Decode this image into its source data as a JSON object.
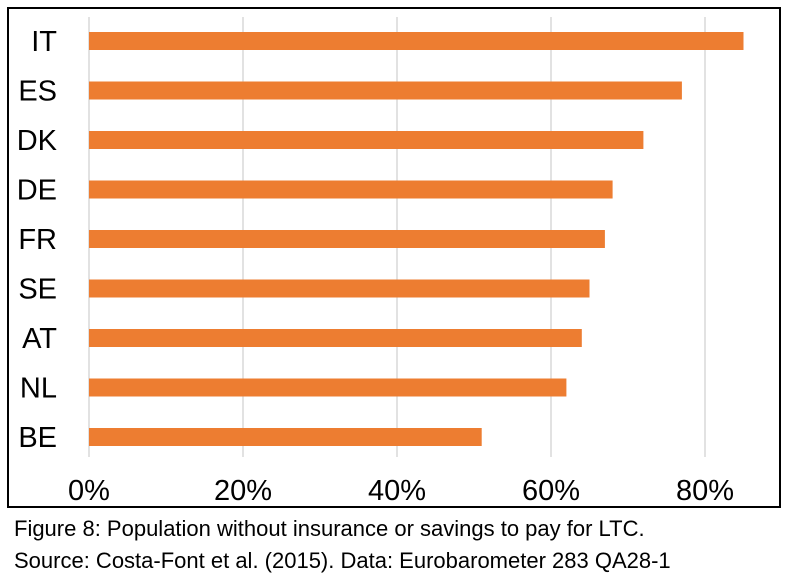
{
  "chart_data": {
    "type": "bar",
    "orientation": "horizontal",
    "categories": [
      "IT",
      "ES",
      "DK",
      "DE",
      "FR",
      "SE",
      "AT",
      "NL",
      "BE"
    ],
    "values": [
      85,
      77,
      72,
      68,
      67,
      65,
      64,
      62,
      51
    ],
    "x_ticks": [
      "0%",
      "20%",
      "40%",
      "60%",
      "80%"
    ],
    "x_tick_values": [
      0,
      20,
      40,
      60,
      80
    ],
    "xlim": [
      0,
      90
    ],
    "grid": "vertical",
    "legend": "none",
    "bar_color": "#ED7D31",
    "grid_color": "#D9D9D9"
  },
  "caption": {
    "line1": "Figure 8: Population without insurance or savings to pay for LTC.",
    "line2": "Source: Costa-Font et al. (2015). Data: Eurobarometer 283 QA28-1"
  }
}
